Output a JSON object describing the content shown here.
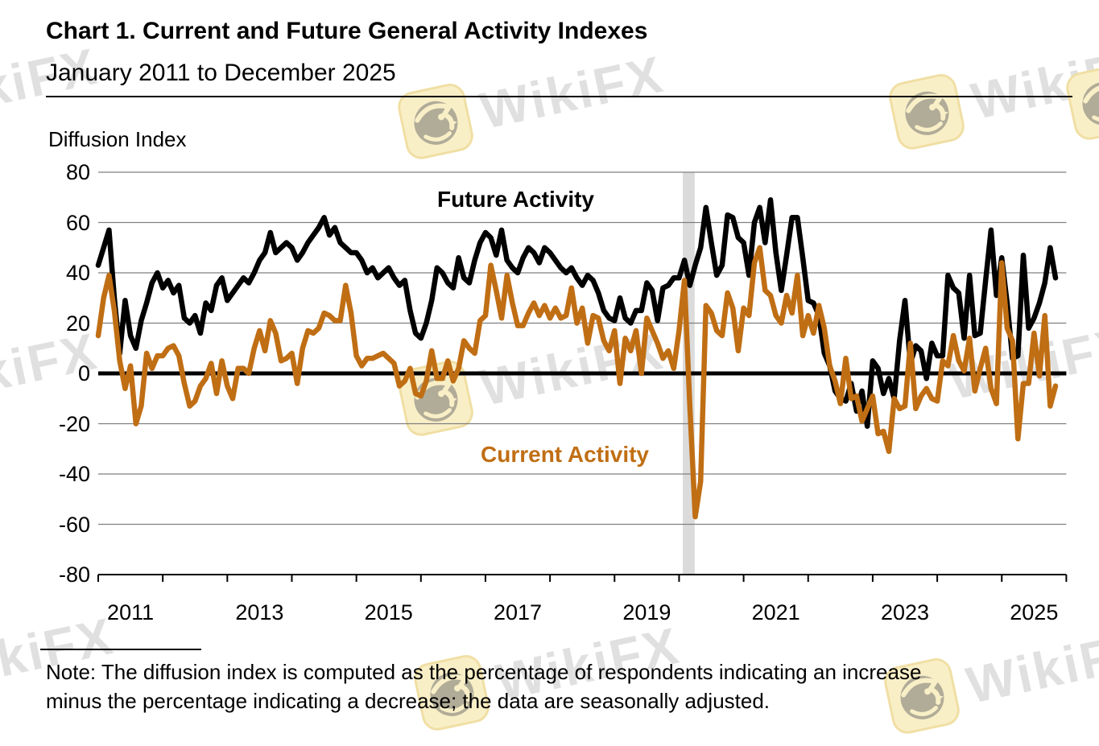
{
  "header": {
    "title": "Chart 1. Current and Future General Activity Indexes",
    "subtitle": "January 2011 to December 2025"
  },
  "note": {
    "line1": "Note: The diffusion index is computed as the percentage of respondents indicating an increase",
    "line2": "minus the percentage indicating a decrease; the data are seasonally adjusted."
  },
  "watermark": {
    "text": "WikiFX",
    "icon": "wikifx-lion-icon",
    "icon_bg": "#F9EFC7",
    "icon_border": "#F0DFA4"
  },
  "chart_data": {
    "type": "line",
    "title": "Chart 1. Current and Future General Activity Indexes",
    "subtitle": "January 2011 to December 2025",
    "ylabel": "Diffusion Index",
    "ylim": [
      -80,
      80
    ],
    "y_ticks": [
      80,
      60,
      40,
      20,
      0,
      -20,
      -40,
      -60,
      -80
    ],
    "x_range": {
      "from": "2011-01",
      "to": "2025-12",
      "interval": "monthly"
    },
    "x_tick_labels": [
      "2011",
      "2013",
      "2015",
      "2017",
      "2019",
      "2021",
      "2023",
      "2025"
    ],
    "grid": true,
    "zero_line": true,
    "legend_position": "on-chart-labels",
    "colors": {
      "future": "#000000",
      "current": "#C06E14",
      "grid": "#7F7F7F",
      "recession_band": "#DBDBDB"
    },
    "recession_band": {
      "period": "Feb-Apr 2020",
      "start_index": 108.7,
      "end_index": 110.9
    },
    "series": [
      {
        "name": "Future Activity",
        "color": "#000000",
        "values": [
          43,
          50,
          57,
          30,
          8,
          29,
          15,
          10,
          21,
          28,
          36,
          40,
          34,
          37,
          32,
          35,
          22,
          20,
          23,
          16,
          28,
          25,
          35,
          38,
          29,
          32,
          35,
          38,
          36,
          40,
          45,
          48,
          56,
          48,
          50,
          52,
          50,
          45,
          48,
          52,
          55,
          58,
          62,
          55,
          58,
          52,
          50,
          48,
          48,
          45,
          40,
          42,
          38,
          40,
          42,
          38,
          35,
          37,
          25,
          16,
          14,
          20,
          29,
          42,
          40,
          36,
          34,
          46,
          38,
          36,
          45,
          52,
          56,
          54,
          47,
          57,
          45,
          42,
          40,
          46,
          50,
          48,
          44,
          50,
          48,
          45,
          42,
          40,
          42,
          38,
          35,
          39,
          37,
          32,
          25,
          22,
          21,
          30,
          22,
          20,
          25,
          25,
          36,
          33,
          21,
          34,
          35,
          38,
          38,
          45,
          35,
          43,
          50,
          66,
          52,
          39,
          43,
          63,
          62,
          54,
          52,
          39,
          60,
          66,
          52,
          69,
          48,
          33,
          47,
          62,
          62,
          46,
          29,
          28,
          23,
          8,
          3,
          -7,
          -10,
          -11,
          -4,
          -15,
          -7,
          -21,
          5,
          2,
          -8,
          -2,
          -10,
          13,
          29,
          4,
          11,
          9,
          -2,
          12,
          7,
          7,
          39,
          34,
          32,
          14,
          39,
          15,
          16,
          37,
          57,
          31,
          46,
          28,
          6,
          7,
          47,
          18,
          22,
          28,
          36,
          50,
          38
        ]
      },
      {
        "name": "Current Activity",
        "color": "#C06E14",
        "values": [
          15,
          30,
          39,
          25,
          5,
          -6,
          3,
          -20,
          -13,
          8,
          2,
          7,
          7,
          10,
          11,
          7,
          -4,
          -13,
          -11,
          -5,
          -2,
          4,
          -8,
          5,
          -5,
          -10,
          2,
          2,
          0,
          10,
          17,
          9,
          21,
          16,
          5,
          6,
          8,
          -4,
          10,
          17,
          16,
          18,
          24,
          23,
          21,
          21,
          35,
          24,
          7,
          3,
          6,
          6,
          7,
          8,
          6,
          4,
          -5,
          -3,
          2,
          -8,
          -9,
          -3,
          9,
          -2,
          -2,
          5,
          -3,
          2,
          13,
          10,
          8,
          21,
          23,
          43,
          33,
          22,
          39,
          28,
          19,
          19,
          24,
          28,
          23,
          27,
          22,
          26,
          22,
          23,
          34,
          20,
          26,
          12,
          23,
          22,
          13,
          9,
          17,
          -4,
          14,
          9,
          17,
          0,
          22,
          17,
          12,
          6,
          9,
          2,
          17,
          37,
          -13,
          -57,
          -43,
          27,
          24,
          17,
          15,
          32,
          26,
          9,
          26,
          23,
          44,
          50,
          33,
          31,
          23,
          20,
          31,
          24,
          39,
          15,
          23,
          16,
          27,
          18,
          3,
          -3,
          -12,
          6,
          -10,
          -9,
          -19,
          -14,
          -9,
          -24,
          -23,
          -31,
          -10,
          -14,
          -13,
          12,
          -14,
          -9,
          -6,
          -10,
          -11,
          5,
          3,
          15,
          5,
          1,
          14,
          -7,
          2,
          10,
          -6,
          -12,
          44,
          18,
          13,
          -26,
          -4,
          -4,
          16,
          -1,
          23,
          -13,
          -5
        ]
      }
    ]
  }
}
